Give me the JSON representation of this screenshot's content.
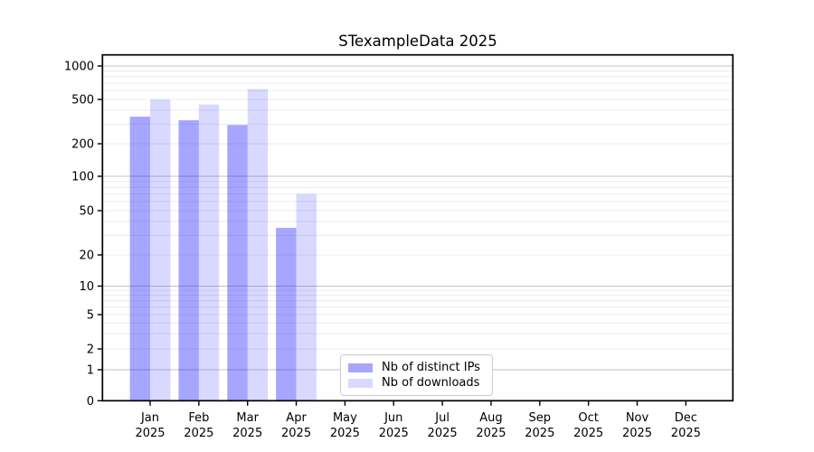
{
  "title": "STexampleData 2025",
  "chart_data": {
    "type": "bar",
    "title": "STexampleData 2025",
    "categories": [
      "Jan 2025",
      "Feb 2025",
      "Mar 2025",
      "Apr 2025",
      "May 2025",
      "Jun 2025",
      "Jul 2025",
      "Aug 2025",
      "Sep 2025",
      "Oct 2025",
      "Nov 2025",
      "Dec 2025"
    ],
    "x_tick_months": [
      "Jan",
      "Feb",
      "Mar",
      "Apr",
      "May",
      "Jun",
      "Jul",
      "Aug",
      "Sep",
      "Oct",
      "Nov",
      "Dec"
    ],
    "x_tick_year": "2025",
    "series": [
      {
        "name": "Nb of distinct IPs",
        "color": "rgba(0,0,255,0.35)",
        "values": [
          350,
          325,
          295,
          35,
          0,
          0,
          0,
          0,
          0,
          0,
          0,
          0
        ]
      },
      {
        "name": "Nb of downloads",
        "color": "rgba(0,0,255,0.15)",
        "values": [
          500,
          450,
          620,
          70,
          0,
          0,
          0,
          0,
          0,
          0,
          0,
          0
        ]
      }
    ],
    "y_ticks": [
      0,
      1,
      2,
      5,
      10,
      20,
      50,
      100,
      200,
      500,
      1000
    ],
    "xlabel": "",
    "ylabel": "",
    "yscale": "symlog",
    "ylim": [
      0,
      1260
    ],
    "grid": "horizontal major and minor gridlines",
    "legend_position": "inside lower-center"
  },
  "colors": {
    "bar_distinct_ips": "rgba(0,0,255,0.35)",
    "bar_downloads": "rgba(0,0,255,0.15)",
    "grid_major": "#c3c3c3",
    "grid_minor": "#ececec",
    "axis": "#000000",
    "text": "#000000",
    "background": "#ffffff",
    "legend_border": "#cbcbcb"
  }
}
